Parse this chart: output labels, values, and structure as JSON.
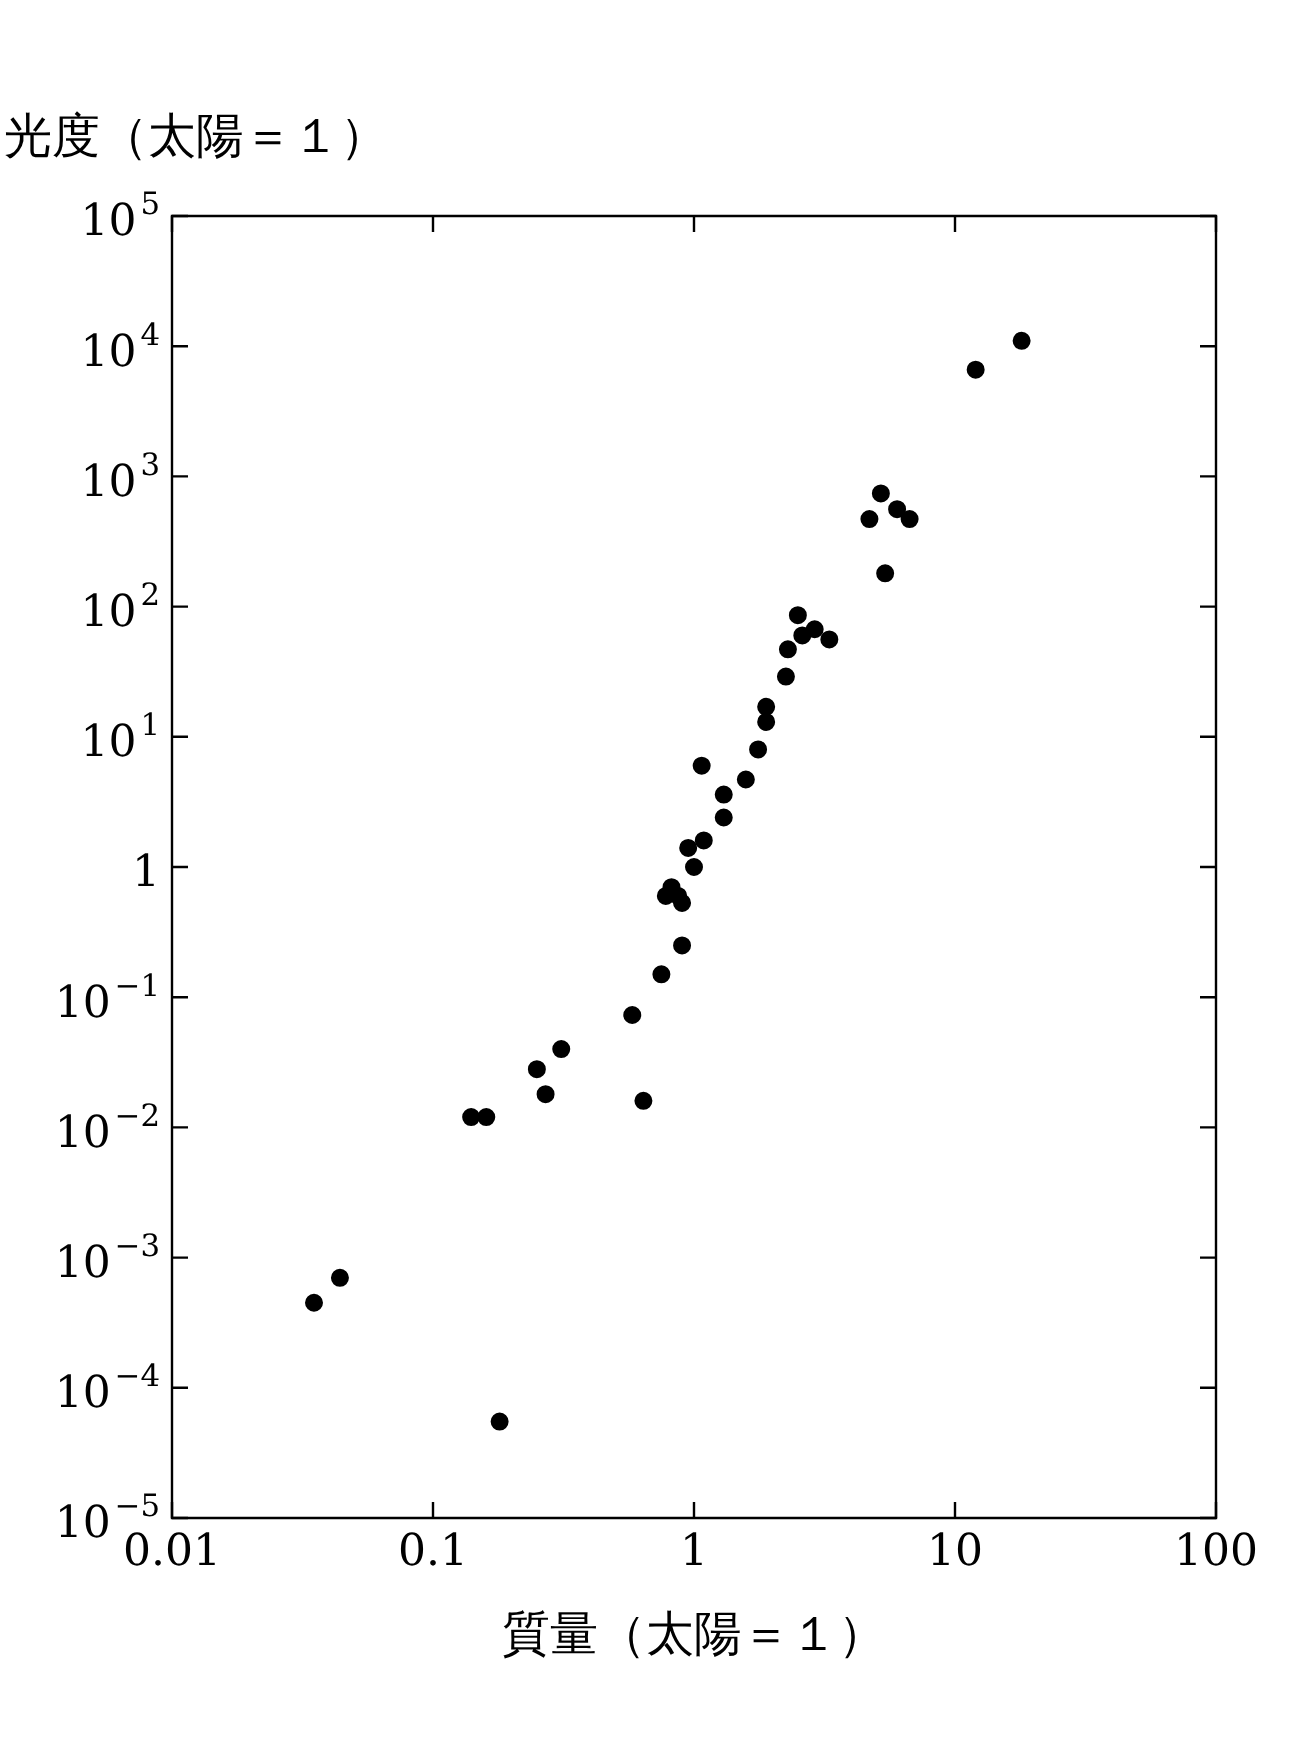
{
  "chart_data": {
    "type": "scatter",
    "xlabel": "質量（太陽＝１）",
    "ylabel": "光度（太陽＝１）",
    "log": "xy",
    "grid": false,
    "legend": false,
    "marker": "circle",
    "xlim": [
      0.01,
      100
    ],
    "xticks": [
      0.01,
      0.1,
      1,
      10,
      100
    ],
    "ylim": [
      1e-05,
      100000
    ],
    "yticks": [
      {
        "value": 1e-05,
        "label": "10$^{−5}$"
      },
      {
        "value": 0.0001,
        "label": "10$^{−4}$"
      },
      {
        "value": 0.001,
        "label": "10$^{−3}$"
      },
      {
        "value": 0.01,
        "label": "10$^{−2}$"
      },
      {
        "value": 0.1,
        "label": "10$^{−1}$"
      },
      1,
      {
        "value": 10,
        "label": "10$^{1}$"
      },
      {
        "value": 100,
        "label": "10$^{2}$"
      },
      {
        "value": 1000,
        "label": "10$^{3}$"
      },
      {
        "value": 10000,
        "label": "10$^{4}$"
      },
      {
        "value": 100000,
        "label": "10$^{5}$"
      }
    ],
    "series": [
      {
        "color": "#000000",
        "x": [
          0.035,
          0.044,
          0.14,
          0.16,
          0.18,
          0.25,
          0.27,
          0.31,
          0.58,
          0.64,
          0.75,
          0.78,
          0.82,
          0.87,
          0.9,
          0.9,
          0.95,
          1.0,
          1.07,
          1.09,
          1.3,
          1.3,
          1.58,
          1.76,
          1.89,
          1.89,
          2.25,
          2.29,
          2.5,
          2.6,
          2.9,
          3.3,
          4.7,
          5.2,
          5.4,
          6.0,
          6.7,
          12,
          18
        ],
        "values": [
          0.00045,
          0.0007,
          0.012,
          0.012,
          5.5e-05,
          0.028,
          0.018,
          0.04,
          0.073,
          0.016,
          0.15,
          0.6,
          0.7,
          0.6,
          0.53,
          0.25,
          1.4,
          1.0,
          6,
          1.6,
          2.4,
          3.6,
          4.7,
          8,
          13,
          17,
          29,
          47,
          86,
          60,
          67,
          56,
          470,
          740,
          180,
          560,
          470,
          6600,
          11000
        ]
      }
    ]
  }
}
